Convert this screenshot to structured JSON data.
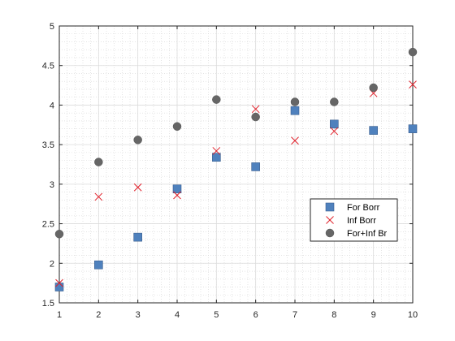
{
  "chart_data": {
    "type": "scatter",
    "title": "",
    "xlabel": "",
    "ylabel": "",
    "xlim": [
      1,
      10
    ],
    "ylim": [
      1.5,
      5
    ],
    "x_ticks": [
      1,
      2,
      3,
      4,
      5,
      6,
      7,
      8,
      9,
      10
    ],
    "y_ticks": [
      1.5,
      2,
      2.5,
      3,
      3.5,
      4,
      4.5,
      5
    ],
    "grid": "major and minor (dotted)",
    "legend_location": "right, lower-middle",
    "series": [
      {
        "name": "For Borr",
        "marker": "square",
        "color": "#4f81bd",
        "x": [
          1,
          2,
          3,
          4,
          5,
          6,
          7,
          8,
          9,
          10
        ],
        "y": [
          1.7,
          1.98,
          2.33,
          2.94,
          3.34,
          3.22,
          3.93,
          3.76,
          3.68,
          3.7
        ]
      },
      {
        "name": "Inf Borr",
        "marker": "x",
        "color": "#e0202a",
        "x": [
          1,
          2,
          3,
          4,
          5,
          6,
          7,
          8,
          9,
          10
        ],
        "y": [
          1.75,
          2.84,
          2.96,
          2.86,
          3.42,
          3.95,
          3.55,
          3.67,
          4.15,
          4.26
        ]
      },
      {
        "name": "For+Inf Br",
        "marker": "circle",
        "color": "#666666",
        "x": [
          1,
          2,
          3,
          4,
          5,
          6,
          7,
          8,
          9,
          10
        ],
        "y": [
          2.37,
          3.28,
          3.56,
          3.73,
          4.07,
          3.85,
          4.04,
          4.04,
          4.22,
          4.67
        ]
      }
    ]
  }
}
